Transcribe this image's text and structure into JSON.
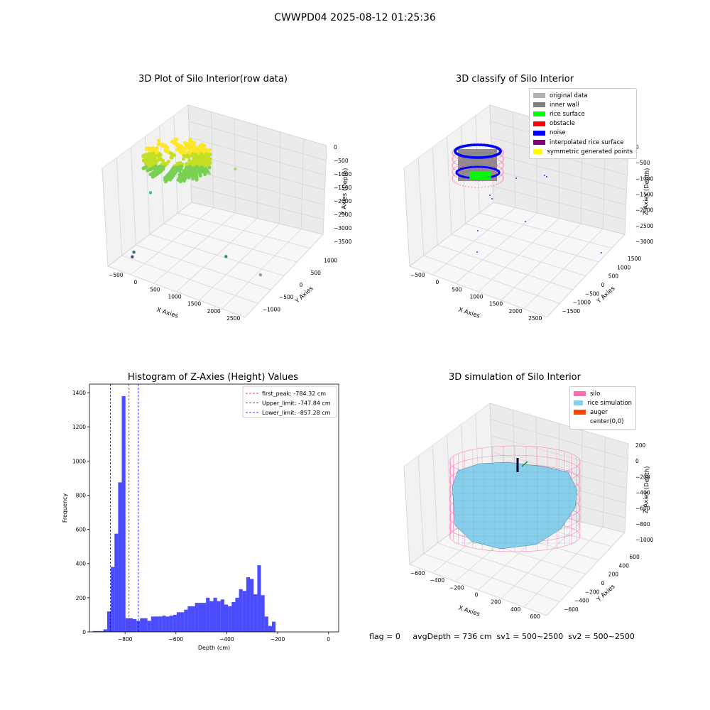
{
  "suptitle": "CWWPD04 2025-08-12 01:25:36",
  "footer": "flag = 0     avgDepth = 736 cm  sv1 = 500~2500  sv2 = 500~2500",
  "chart_data": [
    {
      "type": "scatter3d",
      "title": "3D Plot of Silo Interior(row data)",
      "xlabel": "X Axies",
      "ylabel": "Y Axies",
      "zlabel": "Z Axies (Depth)",
      "xticks": [
        "−500",
        "0",
        "500",
        "1000",
        "1500",
        "2000",
        "2500"
      ],
      "yticks": [
        "−1000",
        "−500",
        "0",
        "500",
        "1000"
      ],
      "zticks": [
        "0",
        "−500",
        "−1000",
        "−1500",
        "−2000",
        "−2500",
        "−3000",
        "−3500"
      ],
      "colormap": "viridis",
      "cluster": {
        "description_visible": false
      },
      "outliers": [
        {
          "x": 2000,
          "y": 0,
          "z": -900,
          "color": "#8fd48a"
        },
        {
          "x": 2500,
          "y": 200,
          "z": -700,
          "color": "#a8db7c"
        },
        {
          "x": 1400,
          "y": -200,
          "z": -1000,
          "color": "#6ccf6f"
        },
        {
          "x": 900,
          "y": -500,
          "z": -1600,
          "color": "#43bf71"
        },
        {
          "x": 2200,
          "y": 300,
          "z": -3000,
          "color": "#21908d"
        },
        {
          "x": 2700,
          "y": 800,
          "z": -3300,
          "color": "#9a9a9a"
        },
        {
          "x": 700,
          "y": -800,
          "z": -3300,
          "color": "#2c728e"
        },
        {
          "x": 800,
          "y": -1000,
          "z": -3500,
          "color": "#3b528b"
        }
      ]
    },
    {
      "type": "scatter3d",
      "title": "3D classify of Silo Interior",
      "xlabel": "X Axies",
      "ylabel": "Y Axies",
      "zlabel": "Z Axies (Depth)",
      "xticks": [
        "−500",
        "0",
        "500",
        "1000",
        "1500",
        "2000",
        "2500"
      ],
      "yticks": [
        "−1500",
        "−1000",
        "−500",
        "0",
        "500",
        "1000",
        "1500"
      ],
      "zticks": [
        "0",
        "−500",
        "−1000",
        "−1500",
        "−2000",
        "−2500",
        "−3000"
      ],
      "legend": [
        {
          "label": "original data",
          "color": "#b3b3b3"
        },
        {
          "label": "inner wall",
          "color": "#808080"
        },
        {
          "label": "rice surface",
          "color": "#00ff00"
        },
        {
          "label": "obstacle",
          "color": "#ff0000"
        },
        {
          "label": "noise",
          "color": "#0000ff"
        },
        {
          "label": "interpolated rice surface",
          "color": "#800080"
        },
        {
          "label": "symmetric generated points",
          "color": "#ffff00"
        }
      ]
    },
    {
      "type": "bar",
      "title": "Histogram of Z-Axies (Height) Values",
      "xlabel": "Depth (cm)",
      "ylabel": "Frequency",
      "xlim": [
        -940,
        40
      ],
      "ylim": [
        0,
        1450
      ],
      "xticks": [
        -800,
        -600,
        -400,
        -200,
        0
      ],
      "xtick_labels": [
        "−800",
        "−600",
        "−400",
        "−200",
        "0"
      ],
      "yticks": [
        0,
        200,
        400,
        600,
        800,
        1000,
        1200,
        1400
      ],
      "bin_width": 14.4,
      "bins_start": -928,
      "values": [
        5,
        5,
        5,
        15,
        120,
        380,
        575,
        875,
        1380,
        80,
        80,
        75,
        65,
        80,
        80,
        65,
        90,
        90,
        90,
        95,
        90,
        95,
        100,
        115,
        115,
        130,
        150,
        150,
        170,
        170,
        170,
        200,
        180,
        200,
        180,
        190,
        160,
        150,
        175,
        200,
        250,
        240,
        320,
        310,
        220,
        390,
        215,
        90,
        35,
        60,
        0
      ],
      "color": "#0000ff",
      "alpha": 0.7,
      "lines": [
        {
          "label": "first_peak: -784.32 cm",
          "x": -784.32,
          "color": "#ff0000"
        },
        {
          "label": "Upper_limit: -747.84 cm",
          "x": -747.84,
          "color": "#0000ff"
        },
        {
          "label": "Lower_limit: -857.28 cm",
          "x": -857.28,
          "color": "#0000ff"
        }
      ],
      "legend_position": "upper right"
    },
    {
      "type": "surface3d",
      "title": "3D simulation of Silo Interior",
      "xlabel": "X Axies",
      "ylabel": "Y Axies",
      "zlabel": "Z Axies (Depth)",
      "xticks": [
        "−600",
        "−400",
        "−200",
        "0",
        "200",
        "400",
        "600"
      ],
      "yticks": [
        "−600",
        "−400",
        "−200",
        "0",
        "200",
        "400",
        "600"
      ],
      "zticks": [
        "200",
        "0",
        "−200",
        "−400",
        "−600",
        "−800",
        "−1000"
      ],
      "legend": [
        {
          "label": "silo",
          "color": "#ff69b4"
        },
        {
          "label": "rice simulation",
          "color": "#87ceeb"
        },
        {
          "label": "auger",
          "color": "#ff4500"
        },
        {
          "label": "center(0,0)",
          "color": ""
        }
      ]
    }
  ]
}
